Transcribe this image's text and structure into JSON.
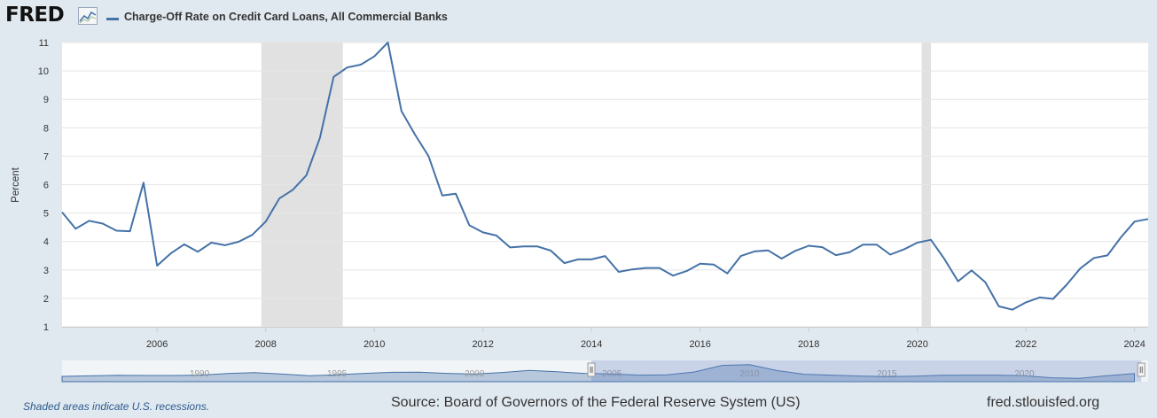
{
  "brand": {
    "logo_text": "FRED",
    "logo_graph_icon": "line-chart-icon"
  },
  "legend": {
    "label": "Charge-Off Rate on Credit Card Loans, All Commercial Banks",
    "color": "#4572a7"
  },
  "footer": {
    "note": "Shaded areas indicate U.S. recessions.",
    "source": "Source: Board of Governors of the Federal Reserve System (US)",
    "site": "fred.stlouisfed.org"
  },
  "navigator": {
    "tick_labels": [
      "1990",
      "1995",
      "2000",
      "2005",
      "2010",
      "2015",
      "2020"
    ],
    "tick_years": [
      1990,
      1995,
      2000,
      2005,
      2010,
      2015,
      2020
    ],
    "range": [
      1985.0,
      2024.5
    ],
    "selected_range": [
      2004.25,
      2024.25
    ],
    "series": [
      [
        1985,
        3.0
      ],
      [
        1986,
        3.3
      ],
      [
        1987,
        3.6
      ],
      [
        1988,
        3.5
      ],
      [
        1989,
        3.5
      ],
      [
        1990,
        3.7
      ],
      [
        1991,
        4.6
      ],
      [
        1992,
        5.1
      ],
      [
        1993,
        4.3
      ],
      [
        1994,
        3.4
      ],
      [
        1995,
        3.9
      ],
      [
        1996,
        4.7
      ],
      [
        1997,
        5.3
      ],
      [
        1998,
        5.4
      ],
      [
        1999,
        4.7
      ],
      [
        2000,
        4.3
      ],
      [
        2001,
        5.2
      ],
      [
        2002,
        6.4
      ],
      [
        2003,
        5.6
      ],
      [
        2004,
        4.7
      ],
      [
        2005,
        4.4
      ],
      [
        2006,
        3.7
      ],
      [
        2007,
        3.9
      ],
      [
        2008,
        5.5
      ],
      [
        2009,
        9.2
      ],
      [
        2010,
        9.6
      ],
      [
        2011,
        6.3
      ],
      [
        2012,
        4.2
      ],
      [
        2013,
        3.7
      ],
      [
        2014,
        3.2
      ],
      [
        2015,
        2.9
      ],
      [
        2016,
        3.1
      ],
      [
        2017,
        3.6
      ],
      [
        2018,
        3.7
      ],
      [
        2019,
        3.7
      ],
      [
        2020,
        3.4
      ],
      [
        2021,
        2.2
      ],
      [
        2022,
        1.9
      ],
      [
        2023,
        3.4
      ],
      [
        2024,
        4.6
      ]
    ]
  },
  "chart_data": {
    "type": "line",
    "title": "Charge-Off Rate on Credit Card Loans, All Commercial Banks",
    "xlabel": "",
    "ylabel": "Percent",
    "xlim": [
      2004.25,
      2024.25
    ],
    "ylim": [
      1,
      11
    ],
    "x_ticks": [
      2006,
      2008,
      2010,
      2012,
      2014,
      2016,
      2018,
      2020,
      2022,
      2024
    ],
    "x_tick_labels": [
      "2006",
      "2008",
      "2010",
      "2012",
      "2014",
      "2016",
      "2018",
      "2020",
      "2022",
      "2024"
    ],
    "y_ticks": [
      1,
      2,
      3,
      4,
      5,
      6,
      7,
      8,
      9,
      10,
      11
    ],
    "y_tick_labels": [
      "1",
      "2",
      "3",
      "4",
      "5",
      "6",
      "7",
      "8",
      "9",
      "10",
      "11"
    ],
    "grid": true,
    "recessions": [
      [
        2007.92,
        2009.42
      ],
      [
        2020.08,
        2020.25
      ]
    ],
    "series": [
      {
        "name": "Charge-Off Rate on Credit Card Loans, All Commercial Banks",
        "color": "#4572a7",
        "points": [
          [
            2004.25,
            5.03
          ],
          [
            2004.5,
            4.45
          ],
          [
            2004.75,
            4.73
          ],
          [
            2005.0,
            4.63
          ],
          [
            2005.25,
            4.38
          ],
          [
            2005.5,
            4.36
          ],
          [
            2005.75,
            6.07
          ],
          [
            2006.0,
            3.15
          ],
          [
            2006.25,
            3.58
          ],
          [
            2006.5,
            3.9
          ],
          [
            2006.75,
            3.64
          ],
          [
            2007.0,
            3.96
          ],
          [
            2007.25,
            3.87
          ],
          [
            2007.5,
            3.99
          ],
          [
            2007.75,
            4.23
          ],
          [
            2008.0,
            4.7
          ],
          [
            2008.25,
            5.51
          ],
          [
            2008.5,
            5.82
          ],
          [
            2008.75,
            6.33
          ],
          [
            2009.0,
            7.65
          ],
          [
            2009.25,
            9.79
          ],
          [
            2009.5,
            10.12
          ],
          [
            2009.75,
            10.22
          ],
          [
            2010.0,
            10.51
          ],
          [
            2010.25,
            11.0
          ],
          [
            2010.5,
            8.59
          ],
          [
            2010.75,
            7.76
          ],
          [
            2011.0,
            7.0
          ],
          [
            2011.25,
            5.62
          ],
          [
            2011.5,
            5.68
          ],
          [
            2011.75,
            4.57
          ],
          [
            2012.0,
            4.32
          ],
          [
            2012.25,
            4.21
          ],
          [
            2012.5,
            3.79
          ],
          [
            2012.75,
            3.83
          ],
          [
            2013.0,
            3.83
          ],
          [
            2013.25,
            3.68
          ],
          [
            2013.5,
            3.24
          ],
          [
            2013.75,
            3.37
          ],
          [
            2014.0,
            3.37
          ],
          [
            2014.25,
            3.49
          ],
          [
            2014.5,
            2.93
          ],
          [
            2014.75,
            3.02
          ],
          [
            2015.0,
            3.07
          ],
          [
            2015.25,
            3.07
          ],
          [
            2015.5,
            2.8
          ],
          [
            2015.75,
            2.96
          ],
          [
            2016.0,
            3.22
          ],
          [
            2016.25,
            3.19
          ],
          [
            2016.5,
            2.88
          ],
          [
            2016.75,
            3.49
          ],
          [
            2017.0,
            3.65
          ],
          [
            2017.25,
            3.69
          ],
          [
            2017.5,
            3.4
          ],
          [
            2017.75,
            3.67
          ],
          [
            2018.0,
            3.85
          ],
          [
            2018.25,
            3.8
          ],
          [
            2018.5,
            3.52
          ],
          [
            2018.75,
            3.62
          ],
          [
            2019.0,
            3.89
          ],
          [
            2019.25,
            3.89
          ],
          [
            2019.5,
            3.54
          ],
          [
            2019.75,
            3.72
          ],
          [
            2020.0,
            3.96
          ],
          [
            2020.25,
            4.06
          ],
          [
            2020.5,
            3.38
          ],
          [
            2020.75,
            2.6
          ],
          [
            2021.0,
            2.98
          ],
          [
            2021.25,
            2.57
          ],
          [
            2021.5,
            1.72
          ],
          [
            2021.75,
            1.6
          ],
          [
            2022.0,
            1.86
          ],
          [
            2022.25,
            2.03
          ],
          [
            2022.5,
            1.98
          ],
          [
            2022.75,
            2.48
          ],
          [
            2023.0,
            3.05
          ],
          [
            2023.25,
            3.42
          ],
          [
            2023.5,
            3.51
          ],
          [
            2023.75,
            4.15
          ],
          [
            2024.0,
            4.7
          ],
          [
            2024.25,
            4.79
          ]
        ]
      }
    ]
  }
}
